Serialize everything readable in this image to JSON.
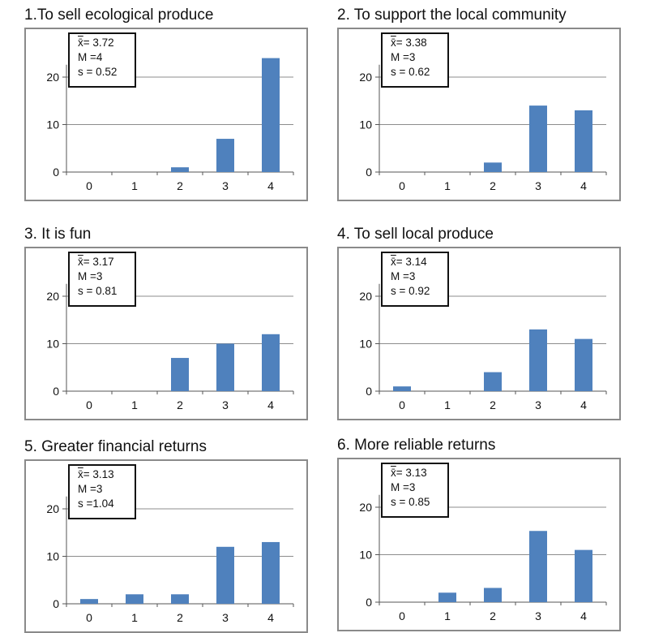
{
  "colors": {
    "bar": "#4f81bd",
    "grid": "#8c8c8c",
    "frame": "#8a8a8a"
  },
  "chart_data": [
    {
      "type": "bar",
      "title": "1.To sell ecological produce",
      "categories": [
        "0",
        "1",
        "2",
        "3",
        "4"
      ],
      "values": [
        0,
        0,
        1,
        7,
        24
      ],
      "yticks": [
        "0",
        "10",
        "20"
      ],
      "ylim": [
        0,
        25
      ],
      "grid": true,
      "stats": {
        "mean_label": "x̄",
        "mean": "= 3.72",
        "median": "M =4",
        "sd": "s = 0.52"
      }
    },
    {
      "type": "bar",
      "title": "2.  To support the local community",
      "categories": [
        "0",
        "1",
        "2",
        "3",
        "4"
      ],
      "values": [
        0,
        0,
        2,
        14,
        13
      ],
      "yticks": [
        "0",
        "10",
        "20"
      ],
      "ylim": [
        0,
        25
      ],
      "grid": true,
      "stats": {
        "mean_label": "x̄",
        "mean": "= 3.38",
        "median": "M =3",
        "sd": "s = 0.62"
      }
    },
    {
      "type": "bar",
      "title": "3. It is fun",
      "categories": [
        "0",
        "1",
        "2",
        "3",
        "4"
      ],
      "values": [
        0,
        0,
        7,
        10,
        12
      ],
      "yticks": [
        "0",
        "10",
        "20"
      ],
      "ylim": [
        0,
        25
      ],
      "grid": true,
      "stats": {
        "mean_label": "x̄",
        "mean": "= 3.17",
        "median": "M =3",
        "sd": "s = 0.81"
      }
    },
    {
      "type": "bar",
      "title": "4.  To sell local produce",
      "categories": [
        "0",
        "1",
        "2",
        "3",
        "4"
      ],
      "values": [
        1,
        0,
        4,
        13,
        11
      ],
      "yticks": [
        "0",
        "10",
        "20"
      ],
      "ylim": [
        0,
        25
      ],
      "grid": true,
      "stats": {
        "mean_label": "x̄",
        "mean": "= 3.14",
        "median": "M =3",
        "sd": "s = 0.92"
      }
    },
    {
      "type": "bar",
      "title": "5. Greater financial returns",
      "categories": [
        "0",
        "1",
        "2",
        "3",
        "4"
      ],
      "values": [
        1,
        2,
        2,
        12,
        13
      ],
      "yticks": [
        "0",
        "10",
        "20"
      ],
      "ylim": [
        0,
        25
      ],
      "grid": true,
      "stats": {
        "mean_label": "x̄",
        "mean": "= 3.13",
        "median": "M =3",
        "sd": "s =1.04"
      }
    },
    {
      "type": "bar",
      "title": "6.  More reliable returns",
      "categories": [
        "0",
        "1",
        "2",
        "3",
        "4"
      ],
      "values": [
        0,
        2,
        3,
        15,
        11
      ],
      "yticks": [
        "0",
        "10",
        "20"
      ],
      "ylim": [
        0,
        25
      ],
      "grid": true,
      "stats": {
        "mean_label": "x̄",
        "mean": "= 3.13",
        "median": "M =3",
        "sd": "s = 0.85"
      }
    }
  ]
}
